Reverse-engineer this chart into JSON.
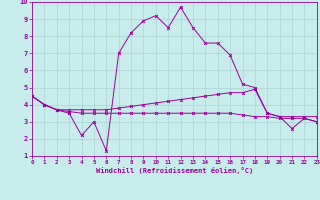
{
  "xlabel": "Windchill (Refroidissement éolien,°C)",
  "x_ticks": [
    0,
    1,
    2,
    3,
    4,
    5,
    6,
    7,
    8,
    9,
    10,
    11,
    12,
    13,
    14,
    15,
    16,
    17,
    18,
    19,
    20,
    21,
    22,
    23
  ],
  "ylim": [
    1,
    10
  ],
  "xlim": [
    0,
    23
  ],
  "y_ticks": [
    1,
    2,
    3,
    4,
    5,
    6,
    7,
    8,
    9,
    10
  ],
  "bg_color": "#c8ecec",
  "grid_color": "#aad4d4",
  "line_color": "#990099",
  "line1_x": [
    0,
    1,
    2,
    3,
    4,
    5,
    6,
    7,
    8,
    9,
    10,
    11,
    12,
    13,
    14,
    15,
    16,
    17,
    18,
    19,
    20,
    21,
    22,
    23
  ],
  "line1_y": [
    4.5,
    4.0,
    3.7,
    3.5,
    2.2,
    3.0,
    1.3,
    7.0,
    8.2,
    8.9,
    9.2,
    8.5,
    9.7,
    8.5,
    7.6,
    7.6,
    6.9,
    5.2,
    5.0,
    3.5,
    3.3,
    2.6,
    3.2,
    3.0
  ],
  "line2_x": [
    0,
    1,
    2,
    3,
    4,
    5,
    6,
    7,
    8,
    9,
    10,
    11,
    12,
    13,
    14,
    15,
    16,
    17,
    18,
    19,
    20,
    21,
    22,
    23
  ],
  "line2_y": [
    4.5,
    4.0,
    3.7,
    3.7,
    3.7,
    3.7,
    3.7,
    3.8,
    3.9,
    4.0,
    4.1,
    4.2,
    4.3,
    4.4,
    4.5,
    4.6,
    4.7,
    4.7,
    4.9,
    3.5,
    3.3,
    3.3,
    3.3,
    3.3
  ],
  "line3_x": [
    0,
    1,
    2,
    3,
    4,
    5,
    6,
    7,
    8,
    9,
    10,
    11,
    12,
    13,
    14,
    15,
    16,
    17,
    18,
    19,
    20,
    21,
    22,
    23
  ],
  "line3_y": [
    4.5,
    4.0,
    3.7,
    3.6,
    3.5,
    3.5,
    3.5,
    3.5,
    3.5,
    3.5,
    3.5,
    3.5,
    3.5,
    3.5,
    3.5,
    3.5,
    3.5,
    3.4,
    3.3,
    3.3,
    3.2,
    3.2,
    3.2,
    3.0
  ],
  "lw": 0.7,
  "ms": 2.0
}
